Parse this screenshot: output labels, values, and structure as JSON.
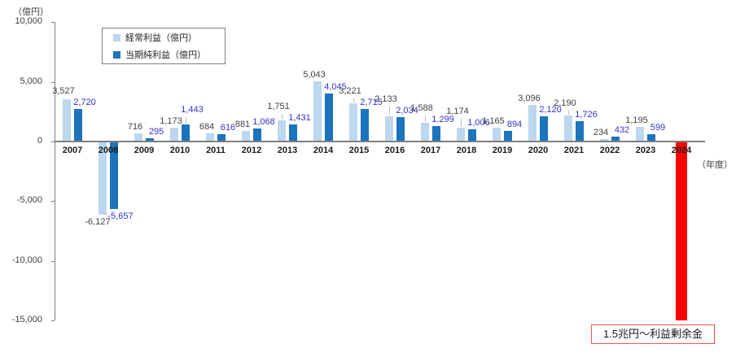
{
  "chart_data": {
    "type": "bar",
    "unit_label": "（億円）",
    "x_axis_label": "（年度）",
    "categories": [
      "2007",
      "2008",
      "2009",
      "2010",
      "2011",
      "2012",
      "2013",
      "2014",
      "2015",
      "2016",
      "2017",
      "2018",
      "2019",
      "2020",
      "2021",
      "2022",
      "2023",
      "2024"
    ],
    "series": [
      {
        "name": "経常利益（億円）",
        "color": "#BDD7EE",
        "label_color": "#404040",
        "values": [
          3527,
          -6127,
          716,
          1173,
          684,
          881,
          1751,
          5043,
          3221,
          2133,
          1588,
          1174,
          1165,
          3096,
          2190,
          234,
          1195,
          null
        ]
      },
      {
        "name": "当期純利益（億円）",
        "color": "#1B74BC",
        "label_color": "#3333CC",
        "values": [
          2720,
          -5657,
          295,
          1443,
          616,
          1068,
          1431,
          4045,
          2715,
          2034,
          1299,
          1006,
          894,
          2120,
          1726,
          432,
          599,
          null
        ]
      }
    ],
    "ylim": [
      -15000,
      10000
    ],
    "yticks": [
      10000,
      5000,
      0,
      -5000,
      -10000,
      -15000
    ],
    "grid": false,
    "legend_position": "top-left",
    "annotation": {
      "category": "2024",
      "extends_to": -15000,
      "color": "#FF0000",
      "box_border_color": "#FF5050",
      "label": "1.5兆円～利益剰余金"
    }
  }
}
